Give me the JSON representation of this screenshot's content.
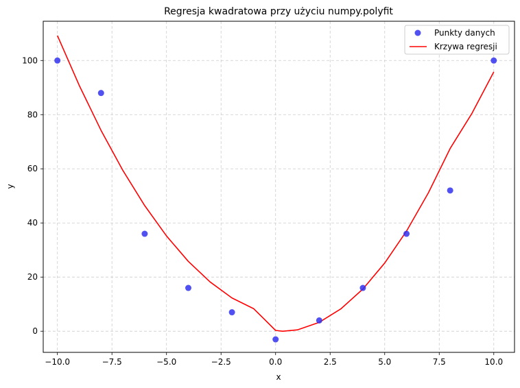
{
  "chart_data": {
    "type": "scatter",
    "title": "Regresja kwadratowa przy użyciu numpy.polyfit",
    "xlabel": "x",
    "ylabel": "y",
    "xlim": [
      -10.65,
      10.95
    ],
    "ylim": [
      -7.8,
      114.5
    ],
    "xticks": [
      -10.0,
      -7.5,
      -5.0,
      -2.5,
      0.0,
      2.5,
      5.0,
      7.5,
      10.0
    ],
    "xtick_labels": [
      "−10.0",
      "−7.5",
      "−5.0",
      "−2.5",
      "0.0",
      "2.5",
      "5.0",
      "7.5",
      "10.0"
    ],
    "yticks": [
      0,
      20,
      40,
      60,
      80,
      100
    ],
    "ytick_labels": [
      "0",
      "20",
      "40",
      "60",
      "80",
      "100"
    ],
    "grid": true,
    "legend_position": "top-right",
    "series": [
      {
        "name": "Punkty danych",
        "kind": "scatter",
        "color": "#3333ee",
        "x": [
          -10,
          -8,
          -6,
          -4,
          -2,
          0,
          2,
          4,
          6,
          8,
          10
        ],
        "y": [
          100,
          88,
          36,
          16,
          7,
          -3,
          4,
          16,
          36,
          52,
          100
        ]
      },
      {
        "name": "Krzywa regresji",
        "kind": "line",
        "color": "#ff0000",
        "x": [
          -10,
          -9,
          -8,
          -7,
          -6,
          -5,
          -4,
          -3,
          -2,
          -1,
          0,
          0.33,
          1,
          2,
          3,
          4,
          5,
          6,
          7,
          8,
          9,
          10
        ],
        "y": [
          109.2,
          90.8,
          74.2,
          59.4,
          46.4,
          35.2,
          25.8,
          18.2,
          12.3,
          8.3,
          0.3,
          0.0,
          0.5,
          3.3,
          8.3,
          15.6,
          25.2,
          37.0,
          51.1,
          67.5,
          80.5,
          95.8
        ]
      }
    ]
  }
}
